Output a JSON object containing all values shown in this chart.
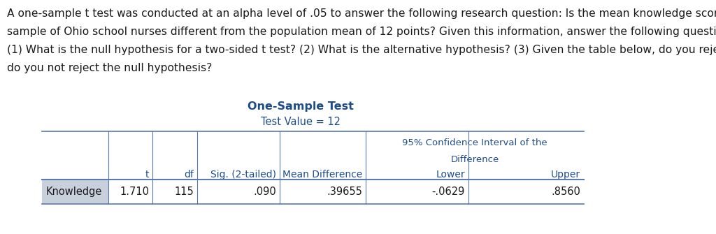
{
  "paragraph_lines": [
    "A one-sample t test was conducted at an alpha level of .05 to answer the following research question: Is the mean knowledge score of a",
    "sample of Ohio school nurses different from the population mean of 12 points? Given this information, answer the following questions:",
    "(1) What is the null hypothesis for a two-sided t test? (2) What is the alternative hypothesis? (3) Given the table below, do you reject, or",
    "do you not reject the null hypothesis?"
  ],
  "table_title": "One-Sample Test",
  "table_subtitle": "Test Value = 12",
  "ci_header_line1": "95% Confidence Interval of the",
  "ci_header_line2": "Difference",
  "col_headers": [
    "t",
    "df",
    "Sig. (2-tailed)",
    "Mean Difference",
    "Lower",
    "Upper"
  ],
  "row_label": "Knowledge",
  "row_values": [
    "1.710",
    "115",
    ".090",
    ".39655",
    "-.0629",
    ".8560"
  ],
  "row_label_bg": "#c8d0dc",
  "bg_color": "#ffffff",
  "text_color": "#1a1a1a",
  "table_text_color": "#1e4d8c",
  "line_color": "#5a7aab",
  "para_fontsize": 11.2,
  "title_fontsize": 11.5,
  "subtitle_fontsize": 10.5,
  "header_fontsize": 10.0,
  "data_fontsize": 10.5
}
